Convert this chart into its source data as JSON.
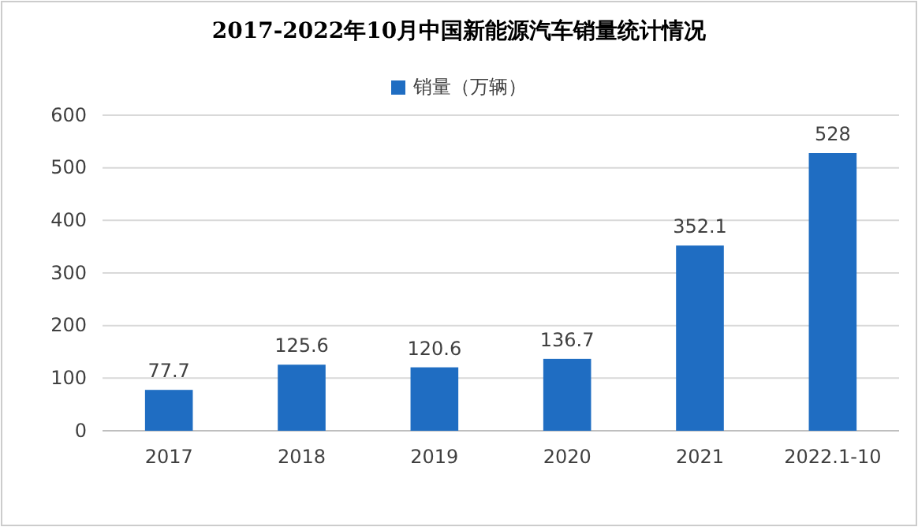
{
  "chart_data": {
    "type": "bar",
    "title": "2017-2022年10月中国新能源汽车销量统计情况",
    "categories": [
      "2017",
      "2018",
      "2019",
      "2020",
      "2021",
      "2022.1-10"
    ],
    "series": [
      {
        "name": "销量（万辆）",
        "color": "#1f6dc2",
        "values": [
          77.7,
          125.6,
          120.6,
          136.7,
          352.1,
          528
        ]
      }
    ],
    "ylim": [
      0,
      600
    ],
    "yticks": [
      0,
      100,
      200,
      300,
      400,
      500,
      600
    ],
    "grid": "y",
    "legend": "top",
    "data_labels": true
  }
}
